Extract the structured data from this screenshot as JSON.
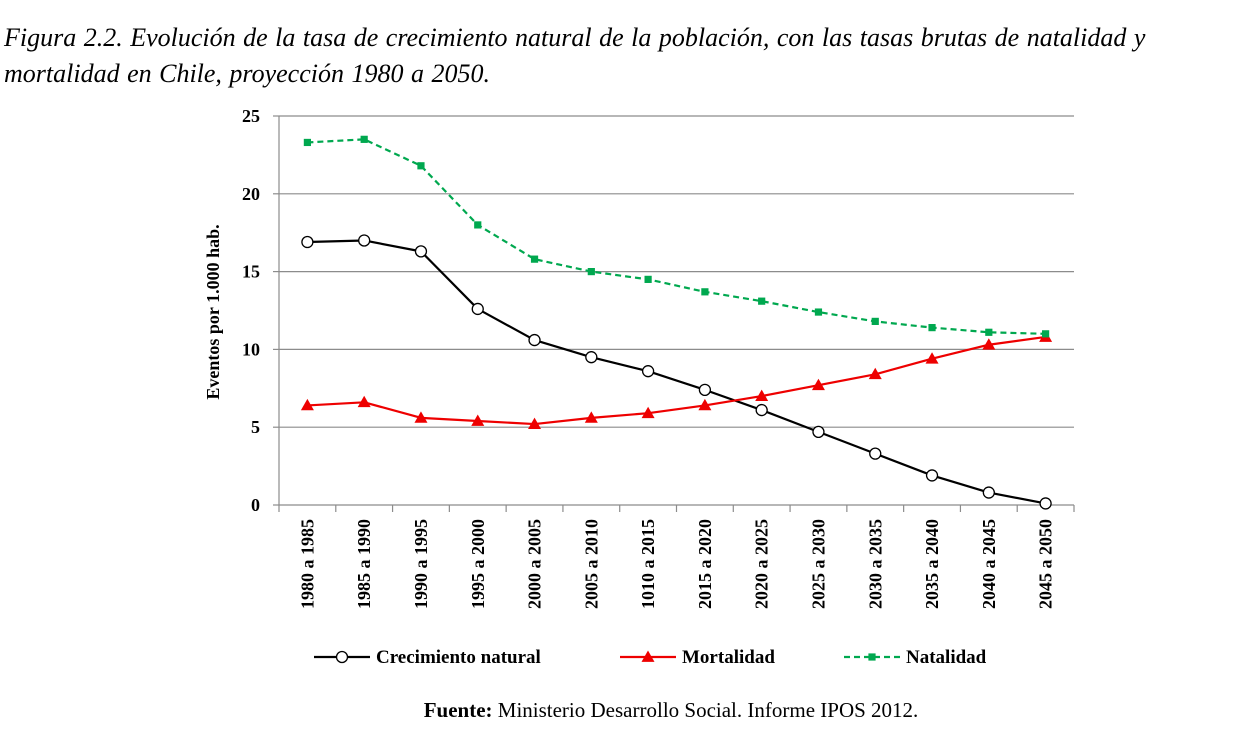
{
  "figure": {
    "title": "Figura 2.2. Evolución de la tasa de crecimiento natural de la población, con las tasas brutas de natalidad y mortalidad en Chile, proyección 1980 a 2050.",
    "source_label": "Fuente:",
    "source_text": "Ministerio Desarrollo Social. Informe IPOS 2012."
  },
  "chart_data": {
    "type": "line",
    "title": "",
    "xlabel": "",
    "ylabel": "Eventos por 1.000 hab.",
    "ylim": [
      0,
      25
    ],
    "yticks": [
      0,
      5,
      10,
      15,
      20,
      25
    ],
    "grid": "horizontal",
    "legend_position": "bottom",
    "categories": [
      "1980 a 1985",
      "1985 a 1990",
      "1990 a 1995",
      "1995 a 2000",
      "2000 a 2005",
      "2005 a 2010",
      "1010 a 2015",
      "2015 a 2020",
      "2020 a 2025",
      "2025 a 2030",
      "2030 a 2035",
      "2035 a 2040",
      "2040 a 2045",
      "2045 a 2050"
    ],
    "series": [
      {
        "name": "Crecimiento natural",
        "color": "#000000",
        "marker": "open-circle",
        "line_style": "solid",
        "values": [
          16.9,
          17.0,
          16.3,
          12.6,
          10.6,
          9.5,
          8.6,
          7.4,
          6.1,
          4.7,
          3.3,
          1.9,
          0.8,
          0.1
        ]
      },
      {
        "name": "Mortalidad",
        "color": "#ee0000",
        "marker": "filled-triangle",
        "line_style": "solid",
        "values": [
          6.4,
          6.6,
          5.6,
          5.4,
          5.2,
          5.6,
          5.9,
          6.4,
          7.0,
          7.7,
          8.4,
          9.4,
          10.3,
          10.8
        ]
      },
      {
        "name": "Natalidad",
        "color": "#00a84f",
        "marker": "filled-square",
        "line_style": "dashed",
        "values": [
          23.3,
          23.5,
          21.8,
          18.0,
          15.8,
          15.0,
          14.5,
          13.7,
          13.1,
          12.4,
          11.8,
          11.4,
          11.1,
          11.0
        ]
      }
    ]
  }
}
